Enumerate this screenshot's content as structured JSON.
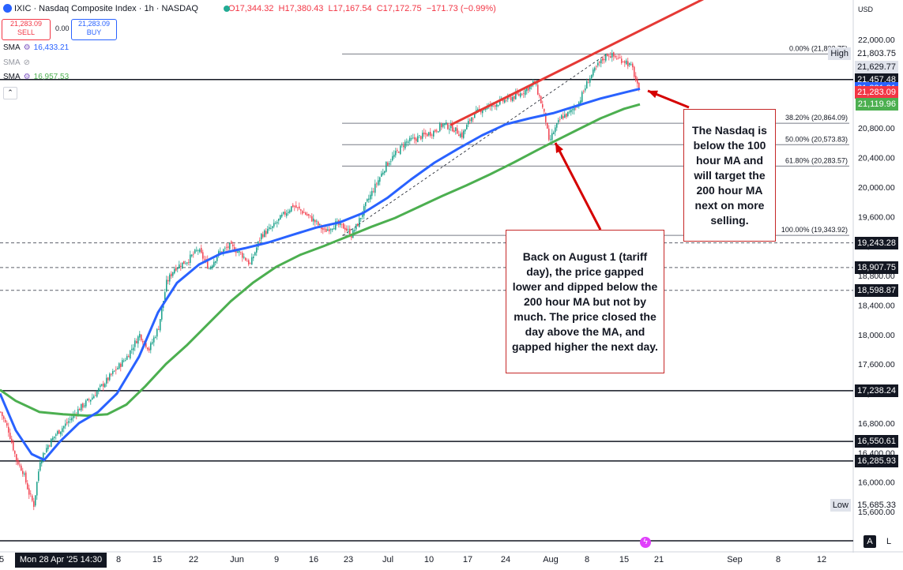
{
  "header": {
    "title": "IXIC · Nasdaq Composite Index · 1h · NASDAQ",
    "ohlc": "O17,344.32  H17,380.43  L17,167.54  C17,172.75  −171.73 (−0.99%)"
  },
  "trade": {
    "sell_price": "21,283.09",
    "sell_label": "SELL",
    "spread": "0.00",
    "buy_price": "21,283.09",
    "buy_label": "BUY"
  },
  "indicators": [
    {
      "name": "SMA",
      "value": "16,433.21",
      "color": "#2962ff"
    },
    {
      "name": "SMA",
      "value": "",
      "color": "#9598a1"
    },
    {
      "name": "SMA",
      "value": "16,957.53",
      "color": "#4caf50"
    }
  ],
  "currency": "USD",
  "price_axis": {
    "ticks": [
      22000,
      21600,
      21200,
      20800,
      20400,
      20000,
      19600,
      19200,
      18800,
      18400,
      18000,
      17600,
      17200,
      16800,
      16400,
      16000,
      15600
    ],
    "tick_labels": [
      "22,000.00",
      "21,600.00",
      "21,200.00",
      "20,800.00",
      "20,400.00",
      "20,000.00",
      "19,600.00",
      "19,200.00",
      "18,800.00",
      "18,400.00",
      "18,000.00",
      "17,600.00",
      "17,200.00",
      "16,800.00",
      "16,400.00",
      "16,000.00",
      "15,600.00"
    ],
    "price_labels": [
      {
        "text": "High",
        "value": 21803.75,
        "style": "light"
      },
      {
        "text": "21,803.75",
        "value": 21803.75,
        "style": "plain"
      },
      {
        "text": "21,629.77",
        "value": 21629.77,
        "style": "light"
      },
      {
        "text": "21,457.48",
        "value": 21457.48,
        "style": "dark"
      },
      {
        "text": "21,331.91",
        "value": 21331.91,
        "style": "blue"
      },
      {
        "text": "21,283.09",
        "value": 21283.09,
        "style": "red"
      },
      {
        "text": "21,119.96",
        "value": 21119.96,
        "style": "green"
      },
      {
        "text": "19,243.28",
        "value": 19243.28,
        "style": "dark"
      },
      {
        "text": "18,907.75",
        "value": 18907.75,
        "style": "dark"
      },
      {
        "text": "18,598.87",
        "value": 18598.87,
        "style": "dark"
      },
      {
        "text": "17,238.24",
        "value": 17238.24,
        "style": "dark"
      },
      {
        "text": "16,550.61",
        "value": 16550.61,
        "style": "dark"
      },
      {
        "text": "16,285.93",
        "value": 16285.93,
        "style": "dark"
      },
      {
        "text": "Low",
        "value": 15685.33,
        "style": "light"
      },
      {
        "text": "15,685.33",
        "value": 15685.33,
        "style": "plain"
      }
    ]
  },
  "time_axis": {
    "labels": [
      "5",
      "8",
      "15",
      "22",
      "Jun",
      "9",
      "16",
      "23",
      "Jul",
      "10",
      "17",
      "24",
      "Aug",
      "8",
      "15",
      "21",
      "Sep",
      "8",
      "12"
    ],
    "crosshair_date": "Mon 28 Apr '25  14:30"
  },
  "chart_data": {
    "type": "candlestick",
    "instrument": "IXIC · Nasdaq Composite Index · 1h · NASDAQ",
    "ylim": [
      15500,
      22300
    ],
    "close_path": [
      {
        "x": 0,
        "y": 16950
      },
      {
        "x": 5,
        "y": 16700
      },
      {
        "x": 10,
        "y": 16300
      },
      {
        "x": 14,
        "y": 16150
      },
      {
        "x": 18,
        "y": 15850
      },
      {
        "x": 21,
        "y": 15690
      },
      {
        "x": 25,
        "y": 16300
      },
      {
        "x": 30,
        "y": 16500
      },
      {
        "x": 35,
        "y": 16650
      },
      {
        "x": 42,
        "y": 16800
      },
      {
        "x": 50,
        "y": 17000
      },
      {
        "x": 58,
        "y": 17150
      },
      {
        "x": 66,
        "y": 17350
      },
      {
        "x": 72,
        "y": 17500
      },
      {
        "x": 80,
        "y": 17700
      },
      {
        "x": 88,
        "y": 18000
      },
      {
        "x": 94,
        "y": 17800
      },
      {
        "x": 100,
        "y": 18100
      },
      {
        "x": 105,
        "y": 18700
      },
      {
        "x": 110,
        "y": 18900
      },
      {
        "x": 118,
        "y": 19000
      },
      {
        "x": 125,
        "y": 19150
      },
      {
        "x": 132,
        "y": 18900
      },
      {
        "x": 138,
        "y": 19100
      },
      {
        "x": 145,
        "y": 19200
      },
      {
        "x": 152,
        "y": 19100
      },
      {
        "x": 158,
        "y": 18950
      },
      {
        "x": 165,
        "y": 19350
      },
      {
        "x": 172,
        "y": 19450
      },
      {
        "x": 178,
        "y": 19600
      },
      {
        "x": 185,
        "y": 19750
      },
      {
        "x": 192,
        "y": 19650
      },
      {
        "x": 198,
        "y": 19550
      },
      {
        "x": 205,
        "y": 19400
      },
      {
        "x": 212,
        "y": 19500
      },
      {
        "x": 218,
        "y": 19450
      },
      {
        "x": 222,
        "y": 19343.92
      },
      {
        "x": 226,
        "y": 19500
      },
      {
        "x": 232,
        "y": 19800
      },
      {
        "x": 238,
        "y": 20050
      },
      {
        "x": 244,
        "y": 20300
      },
      {
        "x": 250,
        "y": 20450
      },
      {
        "x": 256,
        "y": 20600
      },
      {
        "x": 262,
        "y": 20650
      },
      {
        "x": 268,
        "y": 20700
      },
      {
        "x": 274,
        "y": 20750
      },
      {
        "x": 280,
        "y": 20850
      },
      {
        "x": 286,
        "y": 20800
      },
      {
        "x": 292,
        "y": 20700
      },
      {
        "x": 298,
        "y": 20950
      },
      {
        "x": 304,
        "y": 21050
      },
      {
        "x": 310,
        "y": 21100
      },
      {
        "x": 316,
        "y": 21150
      },
      {
        "x": 322,
        "y": 21200
      },
      {
        "x": 328,
        "y": 21250
      },
      {
        "x": 334,
        "y": 21350
      },
      {
        "x": 338,
        "y": 21420
      },
      {
        "x": 342,
        "y": 21150
      },
      {
        "x": 345,
        "y": 20900
      },
      {
        "x": 347,
        "y": 20600
      },
      {
        "x": 350,
        "y": 20750
      },
      {
        "x": 355,
        "y": 20950
      },
      {
        "x": 360,
        "y": 21000
      },
      {
        "x": 366,
        "y": 21150
      },
      {
        "x": 372,
        "y": 21450
      },
      {
        "x": 378,
        "y": 21650
      },
      {
        "x": 384,
        "y": 21803.75
      },
      {
        "x": 390,
        "y": 21750
      },
      {
        "x": 396,
        "y": 21700
      },
      {
        "x": 400,
        "y": 21600
      },
      {
        "x": 404,
        "y": 21283.09
      }
    ],
    "sma_100": [
      {
        "x": 0,
        "y": 17200
      },
      {
        "x": 10,
        "y": 16700
      },
      {
        "x": 20,
        "y": 16380
      },
      {
        "x": 28,
        "y": 16300
      },
      {
        "x": 38,
        "y": 16550
      },
      {
        "x": 50,
        "y": 16800
      },
      {
        "x": 62,
        "y": 16950
      },
      {
        "x": 74,
        "y": 17200
      },
      {
        "x": 88,
        "y": 17700
      },
      {
        "x": 100,
        "y": 18300
      },
      {
        "x": 112,
        "y": 18700
      },
      {
        "x": 126,
        "y": 18950
      },
      {
        "x": 140,
        "y": 19100
      },
      {
        "x": 155,
        "y": 19170
      },
      {
        "x": 170,
        "y": 19250
      },
      {
        "x": 185,
        "y": 19350
      },
      {
        "x": 200,
        "y": 19450
      },
      {
        "x": 215,
        "y": 19520
      },
      {
        "x": 230,
        "y": 19650
      },
      {
        "x": 245,
        "y": 19850
      },
      {
        "x": 260,
        "y": 20100
      },
      {
        "x": 275,
        "y": 20330
      },
      {
        "x": 290,
        "y": 20520
      },
      {
        "x": 305,
        "y": 20700
      },
      {
        "x": 320,
        "y": 20850
      },
      {
        "x": 335,
        "y": 20930
      },
      {
        "x": 350,
        "y": 21000
      },
      {
        "x": 365,
        "y": 21100
      },
      {
        "x": 380,
        "y": 21200
      },
      {
        "x": 395,
        "y": 21280
      },
      {
        "x": 405,
        "y": 21331.91
      }
    ],
    "sma_200": [
      {
        "x": 0,
        "y": 17250
      },
      {
        "x": 10,
        "y": 17100
      },
      {
        "x": 25,
        "y": 16950
      },
      {
        "x": 40,
        "y": 16920
      },
      {
        "x": 55,
        "y": 16900
      },
      {
        "x": 68,
        "y": 16920
      },
      {
        "x": 80,
        "y": 17050
      },
      {
        "x": 92,
        "y": 17300
      },
      {
        "x": 105,
        "y": 17600
      },
      {
        "x": 118,
        "y": 17850
      },
      {
        "x": 132,
        "y": 18150
      },
      {
        "x": 146,
        "y": 18450
      },
      {
        "x": 160,
        "y": 18700
      },
      {
        "x": 175,
        "y": 18920
      },
      {
        "x": 190,
        "y": 19080
      },
      {
        "x": 205,
        "y": 19200
      },
      {
        "x": 220,
        "y": 19330
      },
      {
        "x": 235,
        "y": 19460
      },
      {
        "x": 250,
        "y": 19580
      },
      {
        "x": 265,
        "y": 19730
      },
      {
        "x": 280,
        "y": 19880
      },
      {
        "x": 295,
        "y": 20020
      },
      {
        "x": 310,
        "y": 20170
      },
      {
        "x": 325,
        "y": 20330
      },
      {
        "x": 340,
        "y": 20500
      },
      {
        "x": 350,
        "y": 20610
      },
      {
        "x": 365,
        "y": 20770
      },
      {
        "x": 380,
        "y": 20930
      },
      {
        "x": 395,
        "y": 21060
      },
      {
        "x": 405,
        "y": 21119.96
      }
    ],
    "horizontal_levels": [
      21457.48,
      19243.28,
      18907.75,
      18598.87,
      17238.24,
      16550.61,
      16285.93
    ],
    "dashed_levels": [
      19243.28,
      18907.75,
      18598.87
    ],
    "fibonacci": [
      {
        "label": "0.00% (21,803.75)",
        "value": 21803.75
      },
      {
        "label": "38.20% (20,864.09)",
        "value": 20864.09
      },
      {
        "label": "50.00% (20,573.83)",
        "value": 20573.83
      },
      {
        "label": "61.80% (20,283.57)",
        "value": 20283.57
      },
      {
        "label": "100.00% (19,343.92)",
        "value": 19343.92
      }
    ],
    "trend_line": {
      "x1": 305,
      "y1": 20850,
      "x2": 460,
      "y2": 22550
    },
    "fib_diagonal": {
      "x1": 222,
      "y1": 19343.92,
      "x2": 384,
      "y2": 21803.75
    }
  },
  "annotations": {
    "note1": "The Nasdaq is below the 100 hour MA and will target the 200 hour MA next on more selling.",
    "note2": "Back on August 1 (tariff day), the price gapped lower and dipped below the 200 hour MA but not by much. The price closed the day above the MA, and gapped higher the next day."
  },
  "buttons": {
    "auto": "A",
    "log": "L"
  }
}
